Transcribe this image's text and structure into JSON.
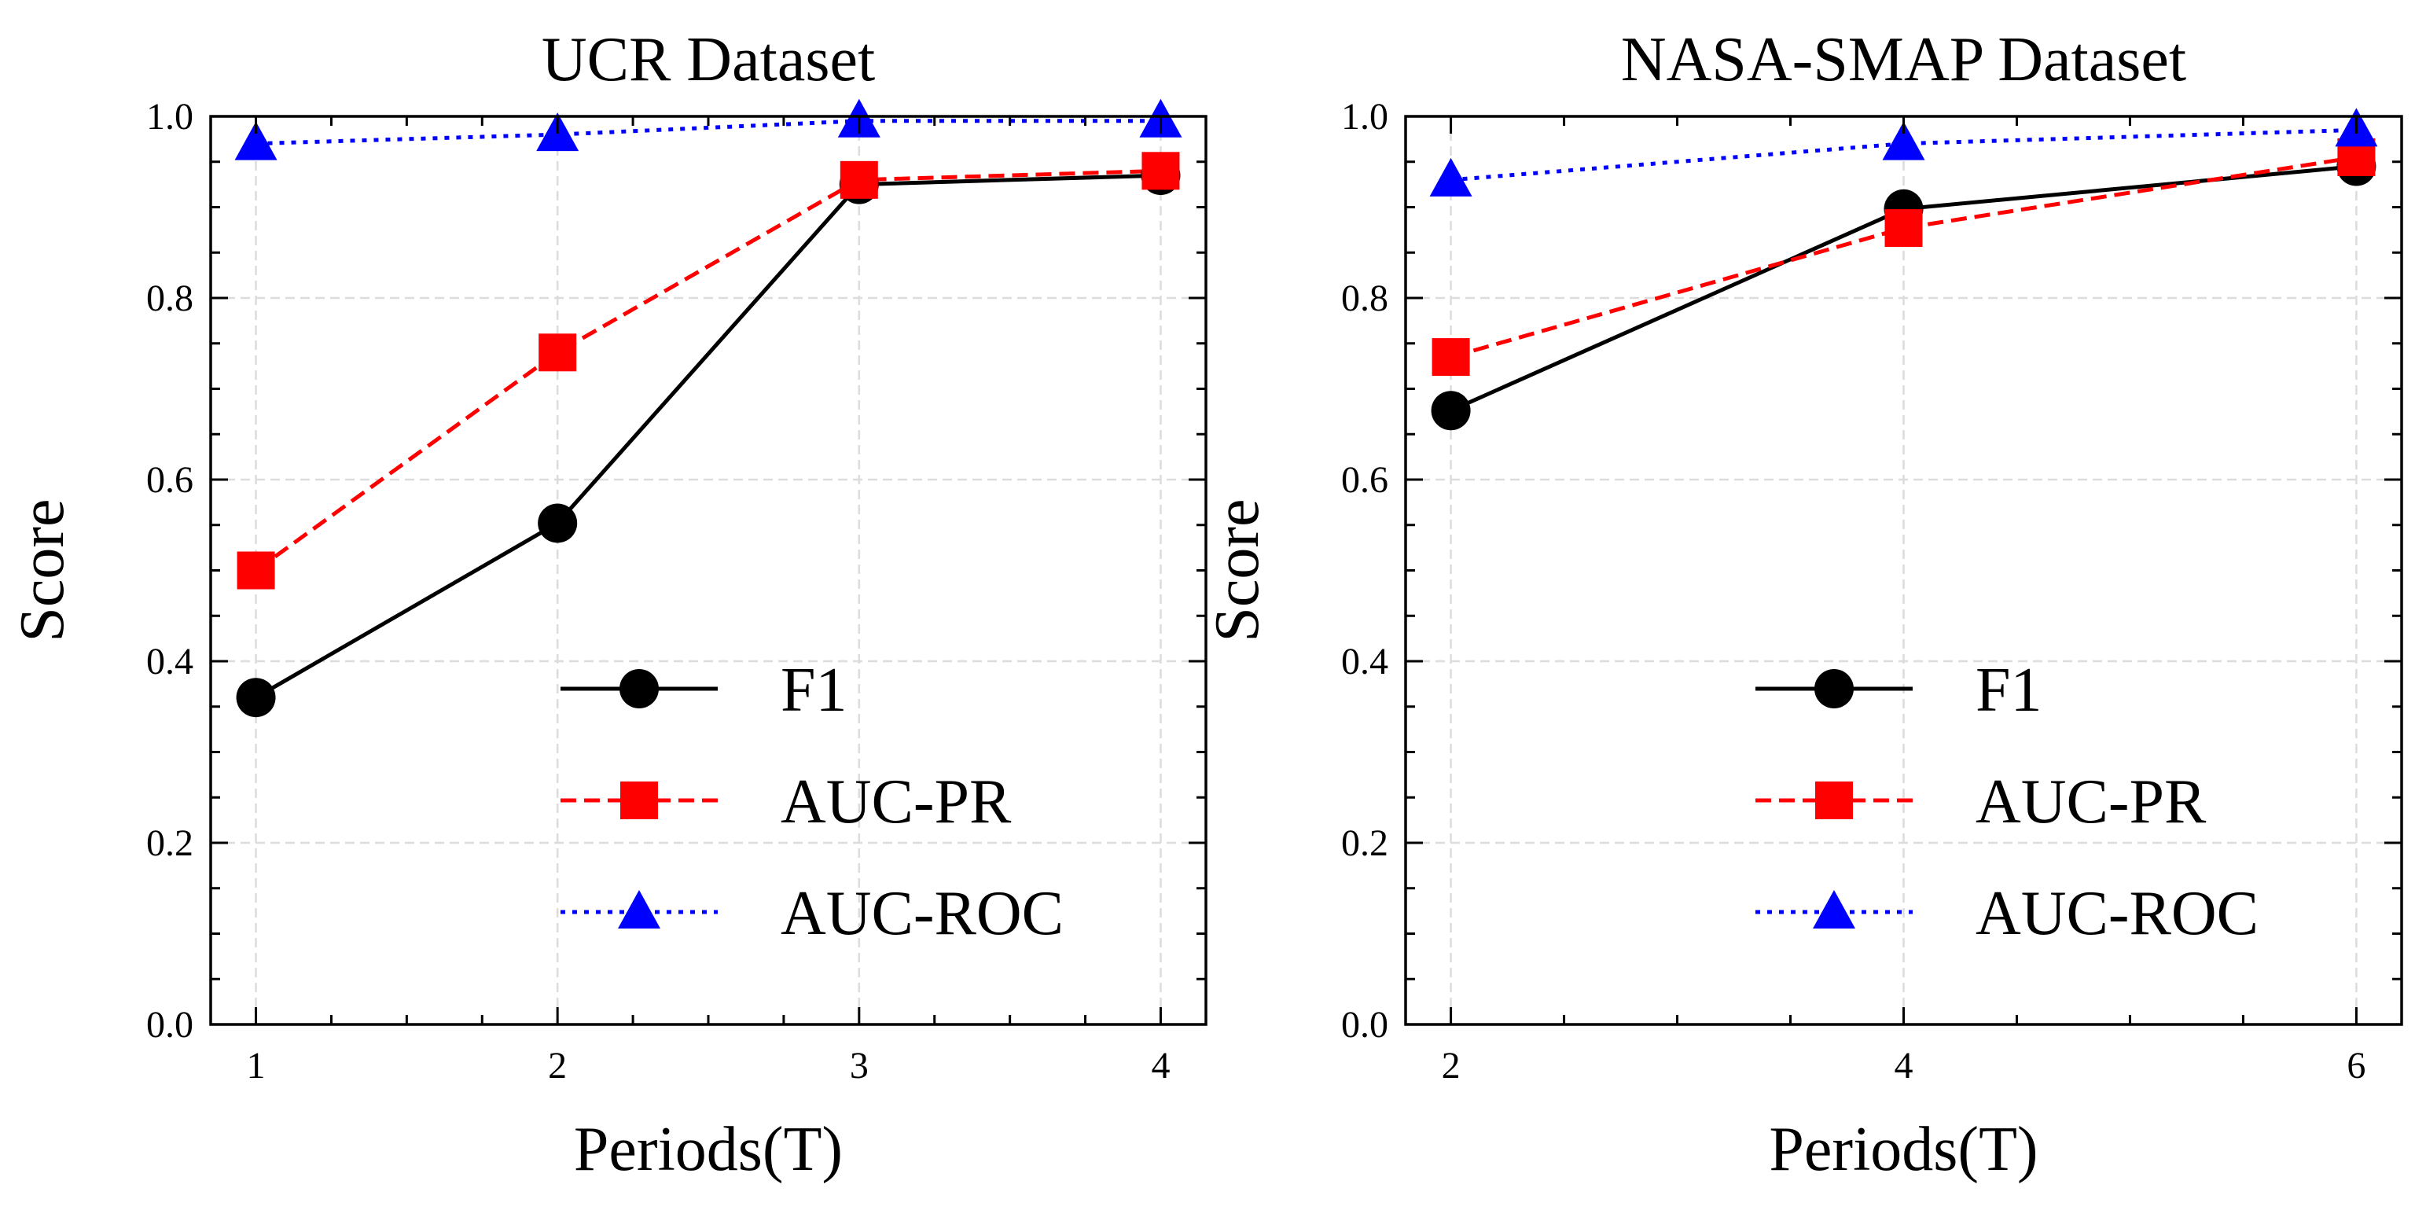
{
  "chart_data": [
    {
      "type": "line",
      "title": "UCR Dataset",
      "xlabel": "Periods(T)",
      "ylabel": "Score",
      "x": [
        1,
        2,
        3,
        4
      ],
      "xticks": [
        "1",
        "2",
        "3",
        "4"
      ],
      "xlim": [
        0.85,
        4.15
      ],
      "ylim": [
        0.0,
        1.0
      ],
      "yticks": [
        "0.0",
        "0.2",
        "0.4",
        "0.6",
        "0.8",
        "1.0"
      ],
      "grid": true,
      "legend": "lower-right",
      "series": [
        {
          "name": "F1",
          "values": [
            0.36,
            0.552,
            0.925,
            0.935
          ],
          "color": "#000000",
          "marker": "circle",
          "linestyle": "solid"
        },
        {
          "name": "AUC-PR",
          "values": [
            0.5,
            0.74,
            0.93,
            0.94
          ],
          "color": "#ff0000",
          "marker": "square",
          "linestyle": "dashed"
        },
        {
          "name": "AUC-ROC",
          "values": [
            0.97,
            0.98,
            0.995,
            0.995
          ],
          "color": "#0000ff",
          "marker": "triangle",
          "linestyle": "dotted"
        }
      ]
    },
    {
      "type": "line",
      "title": "NASA-SMAP Dataset",
      "xlabel": "Periods(T)",
      "ylabel": "Score",
      "x": [
        2,
        4,
        6
      ],
      "xticks": [
        "2",
        "4",
        "6"
      ],
      "xlim": [
        1.8,
        6.2
      ],
      "ylim": [
        0.0,
        1.0
      ],
      "yticks": [
        "0.0",
        "0.2",
        "0.4",
        "0.6",
        "0.8",
        "1.0"
      ],
      "grid": true,
      "legend": "lower-right",
      "series": [
        {
          "name": "F1",
          "values": [
            0.676,
            0.898,
            0.945
          ],
          "color": "#000000",
          "marker": "circle",
          "linestyle": "solid"
        },
        {
          "name": "AUC-PR",
          "values": [
            0.735,
            0.877,
            0.955
          ],
          "color": "#ff0000",
          "marker": "square",
          "linestyle": "dashed"
        },
        {
          "name": "AUC-ROC",
          "values": [
            0.93,
            0.97,
            0.985
          ],
          "color": "#0000ff",
          "marker": "triangle",
          "linestyle": "dotted"
        }
      ]
    }
  ]
}
